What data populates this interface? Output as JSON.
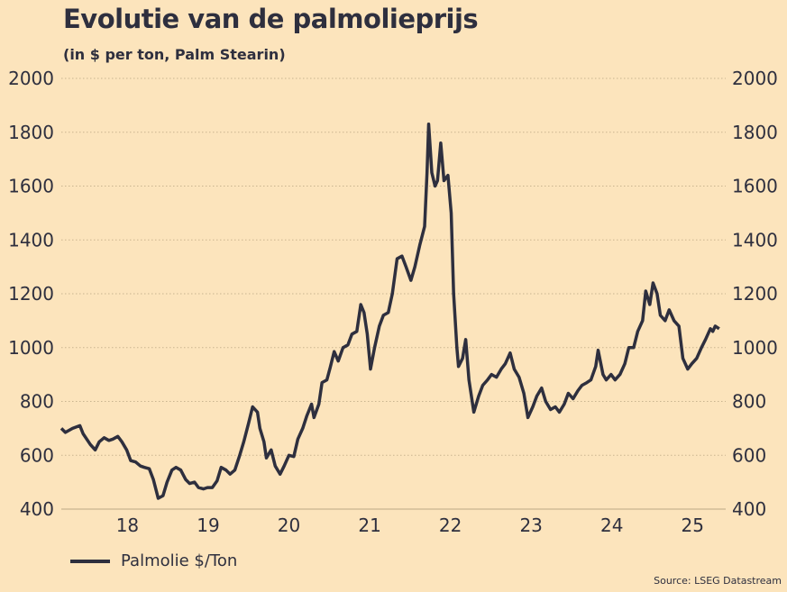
{
  "chart_data": {
    "type": "line",
    "title": "Evolutie van de palmolieprijs",
    "subtitle": "(in $ per ton, Palm Stearin)",
    "source": "Source: LSEG Datastream",
    "xlabel": "",
    "ylabel": "",
    "xlim": [
      17.18,
      25.41
    ],
    "ylim": [
      400,
      2000
    ],
    "grid": true,
    "legend_placement": "bottom-left",
    "x_ticks": [
      18,
      19,
      20,
      21,
      22,
      23,
      24,
      25
    ],
    "x_tick_labels": [
      "18",
      "19",
      "20",
      "21",
      "22",
      "23",
      "24",
      "25"
    ],
    "y_ticks": [
      400,
      600,
      800,
      1000,
      1200,
      1400,
      1600,
      1800,
      2000
    ],
    "y_tick_labels": [
      "400",
      "600",
      "800",
      "1000",
      "1200",
      "1400",
      "1600",
      "1800",
      "2000"
    ],
    "series": [
      {
        "name": "Palmolie $/Ton",
        "color": "#2e2f3e",
        "x": [
          17.18,
          17.23,
          17.32,
          17.41,
          17.45,
          17.54,
          17.6,
          17.65,
          17.71,
          17.77,
          17.82,
          17.88,
          17.93,
          17.99,
          18.04,
          18.1,
          18.16,
          18.21,
          18.27,
          18.32,
          18.38,
          18.44,
          18.49,
          18.55,
          18.6,
          18.66,
          18.72,
          18.77,
          18.83,
          18.88,
          18.94,
          18.99,
          19.05,
          19.11,
          19.16,
          19.22,
          19.27,
          19.33,
          19.39,
          19.44,
          19.5,
          19.55,
          19.61,
          19.64,
          19.69,
          19.72,
          19.78,
          19.83,
          19.89,
          19.94,
          20.0,
          20.06,
          20.11,
          20.17,
          20.22,
          20.28,
          20.31,
          20.37,
          20.41,
          20.47,
          20.51,
          20.56,
          20.61,
          20.67,
          20.73,
          20.78,
          20.84,
          20.89,
          20.93,
          20.97,
          21.01,
          21.06,
          21.12,
          21.17,
          21.23,
          21.28,
          21.34,
          21.4,
          21.45,
          21.51,
          21.56,
          21.62,
          21.68,
          21.71,
          21.73,
          21.77,
          21.81,
          21.84,
          21.88,
          21.92,
          21.97,
          22.01,
          22.04,
          22.08,
          22.1,
          22.15,
          22.19,
          22.23,
          22.29,
          22.35,
          22.4,
          22.46,
          22.51,
          22.57,
          22.63,
          22.68,
          22.74,
          22.79,
          22.85,
          22.91,
          22.96,
          23.02,
          23.07,
          23.13,
          23.18,
          23.24,
          23.3,
          23.35,
          23.41,
          23.46,
          23.52,
          23.58,
          23.63,
          23.69,
          23.74,
          23.8,
          23.83,
          23.89,
          23.93,
          23.99,
          24.04,
          24.1,
          24.16,
          24.21,
          24.27,
          24.32,
          24.38,
          24.42,
          24.47,
          24.51,
          24.56,
          24.6,
          24.66,
          24.71,
          24.77,
          24.83,
          24.88,
          24.94,
          24.99,
          25.05,
          25.11,
          25.16,
          25.22,
          25.25,
          25.28,
          25.33
        ],
        "values": [
          700,
          685,
          700,
          710,
          680,
          640,
          620,
          650,
          665,
          655,
          660,
          670,
          650,
          620,
          580,
          575,
          560,
          555,
          550,
          510,
          440,
          450,
          500,
          545,
          555,
          545,
          510,
          495,
          500,
          480,
          475,
          480,
          480,
          505,
          555,
          545,
          530,
          545,
          600,
          650,
          720,
          780,
          760,
          700,
          650,
          590,
          620,
          560,
          530,
          560,
          600,
          595,
          660,
          700,
          745,
          790,
          740,
          790,
          870,
          880,
          925,
          985,
          950,
          1000,
          1010,
          1050,
          1060,
          1160,
          1130,
          1050,
          920,
          1000,
          1080,
          1120,
          1130,
          1200,
          1330,
          1340,
          1300,
          1250,
          1300,
          1380,
          1450,
          1650,
          1830,
          1650,
          1600,
          1620,
          1760,
          1620,
          1640,
          1500,
          1200,
          1000,
          930,
          960,
          1030,
          880,
          760,
          820,
          860,
          880,
          900,
          890,
          920,
          940,
          980,
          920,
          890,
          830,
          740,
          780,
          820,
          850,
          800,
          770,
          780,
          760,
          790,
          830,
          810,
          840,
          860,
          870,
          880,
          930,
          990,
          900,
          880,
          900,
          880,
          900,
          940,
          1000,
          1000,
          1060,
          1100,
          1210,
          1160,
          1240,
          1200,
          1120,
          1100,
          1140,
          1100,
          1080,
          960,
          920,
          940,
          960,
          1000,
          1030,
          1070,
          1060,
          1080,
          1070
        ]
      }
    ]
  }
}
